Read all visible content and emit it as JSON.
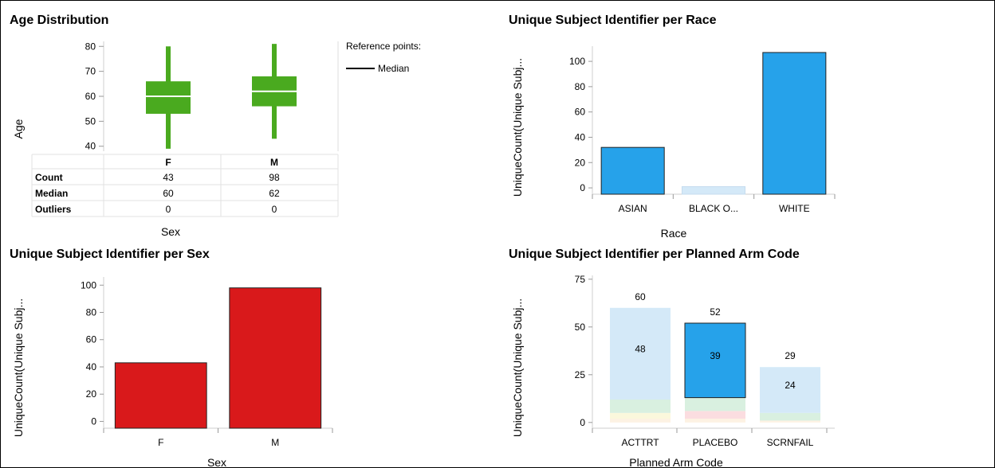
{
  "chart_data": [
    {
      "type": "box",
      "title": "Age Distribution",
      "xlabel": "Sex",
      "ylabel": "Age",
      "ylim": [
        38,
        82
      ],
      "yticks": [
        40,
        50,
        60,
        70,
        80
      ],
      "color": "#4aaa1f",
      "categories": [
        "F",
        "M"
      ],
      "boxes": [
        {
          "category": "F",
          "min": 39,
          "q1": 53,
          "median": 60,
          "q3": 66,
          "max": 80
        },
        {
          "category": "M",
          "min": 43,
          "q1": 56,
          "median": 62,
          "q3": 68,
          "max": 81
        }
      ],
      "legend_title": "Reference points:",
      "legend_items": [
        "Median"
      ],
      "legend_position": "right",
      "table": {
        "rows": [
          {
            "label": "Count",
            "values": [
              "43",
              "98"
            ]
          },
          {
            "label": "Median",
            "values": [
              "60",
              "62"
            ]
          },
          {
            "label": "Outliers",
            "values": [
              "0",
              "0"
            ]
          }
        ]
      }
    },
    {
      "type": "bar",
      "title": "Unique Subject Identifier per Race",
      "xlabel": "Race",
      "ylabel": "UniqueCount(Unique Subj...",
      "ylim": [
        -5,
        112
      ],
      "yticks": [
        0,
        20,
        40,
        60,
        80,
        100
      ],
      "color": "#26a2ea",
      "categories": [
        "ASIAN",
        "BLACK O...",
        "WHITE"
      ],
      "values": [
        32,
        1,
        107
      ],
      "bar_colors": [
        "#26a2ea",
        "#d4e9f8",
        "#26a2ea"
      ]
    },
    {
      "type": "bar",
      "title": "Unique Subject Identifier per Sex",
      "xlabel": "Sex",
      "ylabel": "UniqueCount(Unique Subj...",
      "ylim": [
        -5,
        106
      ],
      "yticks": [
        0,
        20,
        40,
        60,
        80,
        100
      ],
      "color": "#d9191b",
      "categories": [
        "F",
        "M"
      ],
      "values": [
        43,
        98
      ]
    },
    {
      "type": "bar",
      "stacked": true,
      "title": "Unique Subject Identifier per Planned Arm Code",
      "xlabel": "Planned Arm Code",
      "ylabel": "UniqueCount(Unique Subj...",
      "ylim": [
        -3,
        77
      ],
      "yticks": [
        0,
        25,
        50,
        75
      ],
      "categories": [
        "ACTTRT",
        "PLACEBO",
        "SCRNFAIL"
      ],
      "totals": [
        60,
        52,
        29
      ],
      "segments": [
        [
          {
            "value": 2,
            "color": "#fdf2e3"
          },
          {
            "value": 3,
            "color": "#fbf8dc"
          },
          {
            "value": 7,
            "color": "#d9f0e0"
          },
          {
            "value": 48,
            "color": "#d4e9f8",
            "label": "48"
          }
        ],
        [
          {
            "value": 2,
            "color": "#fdf2e3"
          },
          {
            "value": 4,
            "color": "#fbdde0"
          },
          {
            "value": 7,
            "color": "#d9f0e0"
          },
          {
            "value": 39,
            "color": "#26a2ea",
            "label": "39",
            "highlight": true
          }
        ],
        [
          {
            "value": 1,
            "color": "#fdf2e3"
          },
          {
            "value": 4,
            "color": "#d9f0e0"
          },
          {
            "value": 24,
            "color": "#d4e9f8",
            "label": "24"
          }
        ]
      ]
    }
  ]
}
